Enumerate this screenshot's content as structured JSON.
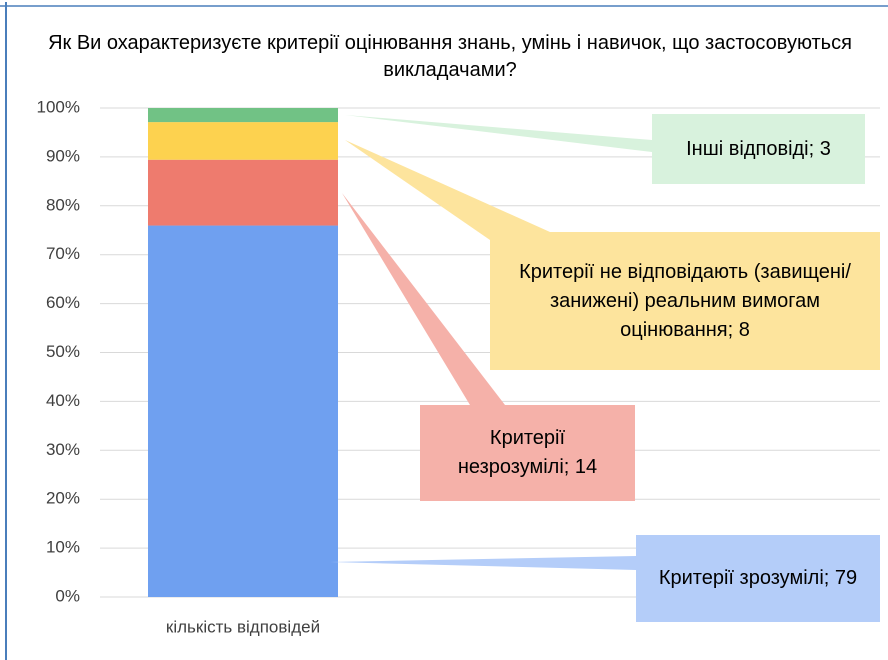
{
  "chart_data": {
    "type": "bar",
    "stacking": "percent",
    "title": "Як Ви охарактеризуєте критерії оцінювання знань, умінь і навичок, що застосовуються викладачами?",
    "categories": [
      "кількість відповідей"
    ],
    "series": [
      {
        "color": "#6fa0f0",
        "values": [
          79
        ],
        "value_labels": [
          "Критерії зрозумілі; 79"
        ]
      },
      {
        "color": "#ee7b6e",
        "values": [
          14
        ],
        "value_labels": [
          "Критерії незрозумілі; 14"
        ]
      },
      {
        "color": "#fdd24f",
        "values": [
          8
        ],
        "value_labels": [
          "Критерії не відповідають (завищені/занижені) реальним вимогам оцінювання; 8"
        ]
      },
      {
        "color": "#71c285",
        "values": [
          3
        ],
        "value_labels": [
          "Інші відповіді; 3"
        ]
      }
    ],
    "ylim": [
      0,
      100
    ],
    "yticks": [
      {
        "value": 0,
        "label": "0%"
      },
      {
        "value": 10,
        "label": "10%"
      },
      {
        "value": 20,
        "label": "20%"
      },
      {
        "value": 30,
        "label": "30%"
      },
      {
        "value": 40,
        "label": "40%"
      },
      {
        "value": 50,
        "label": "50%"
      },
      {
        "value": 60,
        "label": "60%"
      },
      {
        "value": 70,
        "label": "70%"
      },
      {
        "value": 80,
        "label": "80%"
      },
      {
        "value": 90,
        "label": "90%"
      },
      {
        "value": 100,
        "label": "100%"
      }
    ],
    "grid": true
  }
}
